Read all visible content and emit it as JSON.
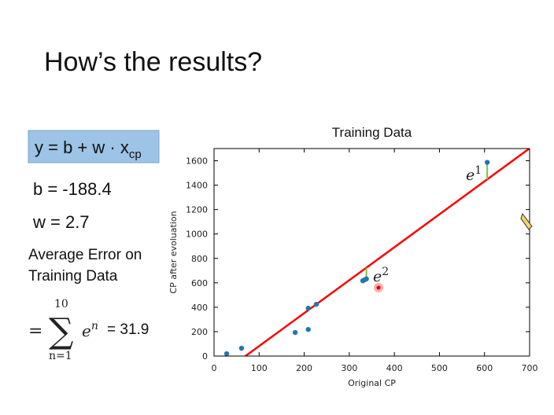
{
  "slide": {
    "title": "How’s the results?",
    "formula": {
      "text": "y = b + w · x",
      "subscript": "cp"
    },
    "b": "b = -188.4",
    "w": "w = 2.7",
    "error_heading": [
      "Average Error on",
      "Training Data"
    ],
    "error_sum": {
      "equals": "=",
      "sigma": "∑",
      "upper": "10",
      "lower": "n=1",
      "term": "e",
      "term_sup": "n",
      "result": "= 31.9"
    }
  },
  "chart_data": {
    "type": "scatter",
    "title": "Training Data",
    "x_label": "Original CP",
    "y_label": "CP after evoluation",
    "x": [
      28,
      61,
      180,
      209,
      209,
      227,
      330,
      334,
      338,
      606
    ],
    "y": [
      19,
      64,
      193,
      218,
      392,
      424,
      617,
      625,
      632,
      1587
    ],
    "color": "#1f77b4",
    "fit_line": {
      "intercept": -188.4,
      "slope": 2.7,
      "color": "#ff0000"
    },
    "error_color": "#7dc242",
    "annotations": [
      {
        "text": "e",
        "sup": "1"
      },
      {
        "text": "e",
        "sup": "2"
      }
    ],
    "xlim": [
      0,
      700
    ],
    "xticks": [
      0,
      100,
      200,
      300,
      400,
      500,
      600,
      700
    ],
    "ylim": [
      0,
      1700
    ],
    "yticks": [
      0,
      200,
      400,
      600,
      800,
      1000,
      1200,
      1400,
      1600
    ]
  }
}
